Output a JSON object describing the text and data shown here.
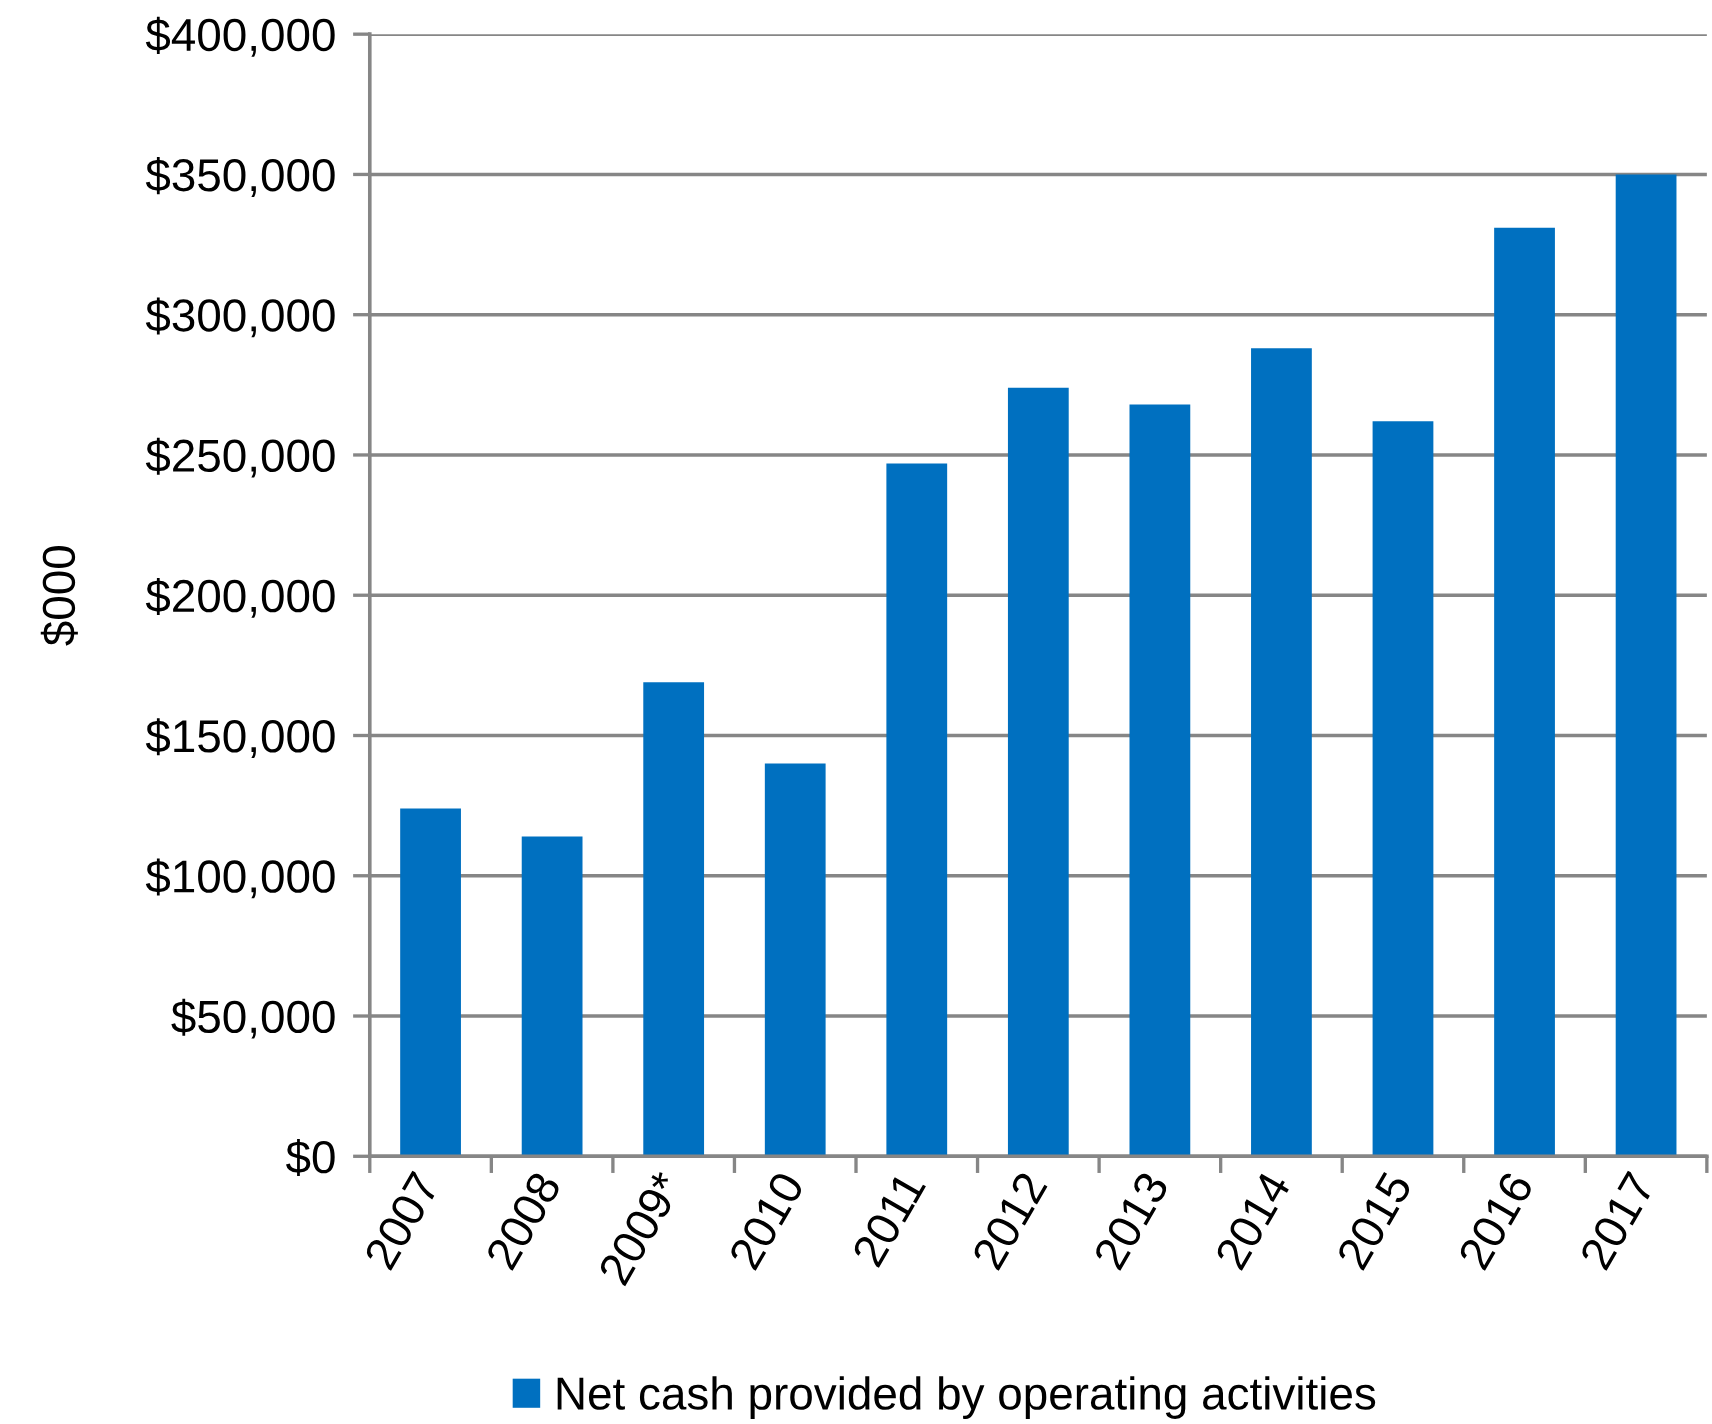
{
  "chart_data": {
    "type": "bar",
    "ylabel": "$000",
    "categories": [
      "2007",
      "2008",
      "2009*",
      "2010",
      "2011",
      "2012",
      "2013",
      "2014",
      "2015",
      "2016",
      "2017"
    ],
    "series": [
      {
        "name": "Net cash provided by operating activities",
        "color": "#0070c0",
        "values": [
          124000,
          114000,
          169000,
          140000,
          247000,
          274000,
          268000,
          288000,
          262000,
          331000,
          350000
        ]
      }
    ],
    "ylim": [
      0,
      400000
    ],
    "yticks": [
      {
        "value": 0,
        "label": "$0"
      },
      {
        "value": 50000,
        "label": "$50,000"
      },
      {
        "value": 100000,
        "label": "$100,000"
      },
      {
        "value": 150000,
        "label": "$150,000"
      },
      {
        "value": 200000,
        "label": "$200,000"
      },
      {
        "value": 250000,
        "label": "$250,000"
      },
      {
        "value": 300000,
        "label": "$300,000"
      },
      {
        "value": 350000,
        "label": "$350,000"
      },
      {
        "value": 400000,
        "label": "$400,000"
      }
    ],
    "grid": "y",
    "legend": "bottom"
  }
}
